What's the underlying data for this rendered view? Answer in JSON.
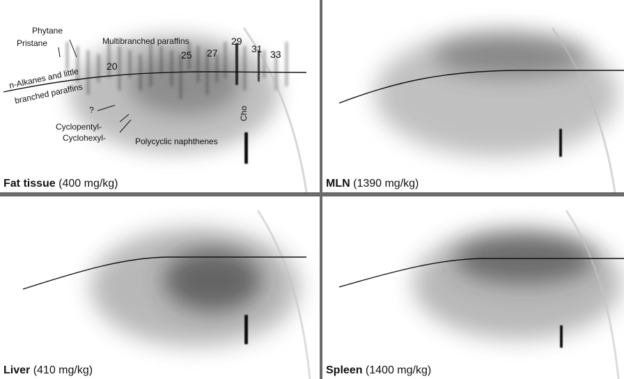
{
  "panels": {
    "fat": {
      "name": "Fat tissue",
      "conc": "(400 mg/kg)"
    },
    "mln": {
      "name": "MLN",
      "conc": "(1390 mg/kg)"
    },
    "liver": {
      "name": "Liver",
      "conc": "(410 mg/kg)"
    },
    "spleen": {
      "name": "Spleen",
      "conc": "(1400 mg/kg)"
    }
  },
  "annotations": {
    "phytane": "Phytane",
    "pristane": "Pristane",
    "multibranched": "Multibranched paraffins",
    "alkanes_line1": "n-Alkanes and little",
    "alkanes_line2": "branched paraffins",
    "question": "?",
    "cyclopentyl": "Cyclopentyl-",
    "cyclohexyl": "Cyclohexyl-",
    "polycyclic": "Polycyclic naphthenes",
    "cho": "Cho"
  },
  "carbon_numbers": [
    "20",
    "25",
    "27",
    "29",
    "31",
    "33"
  ],
  "colors": {
    "divider": "#6b6b6b",
    "ink": "#111111",
    "background": "#ffffff"
  }
}
